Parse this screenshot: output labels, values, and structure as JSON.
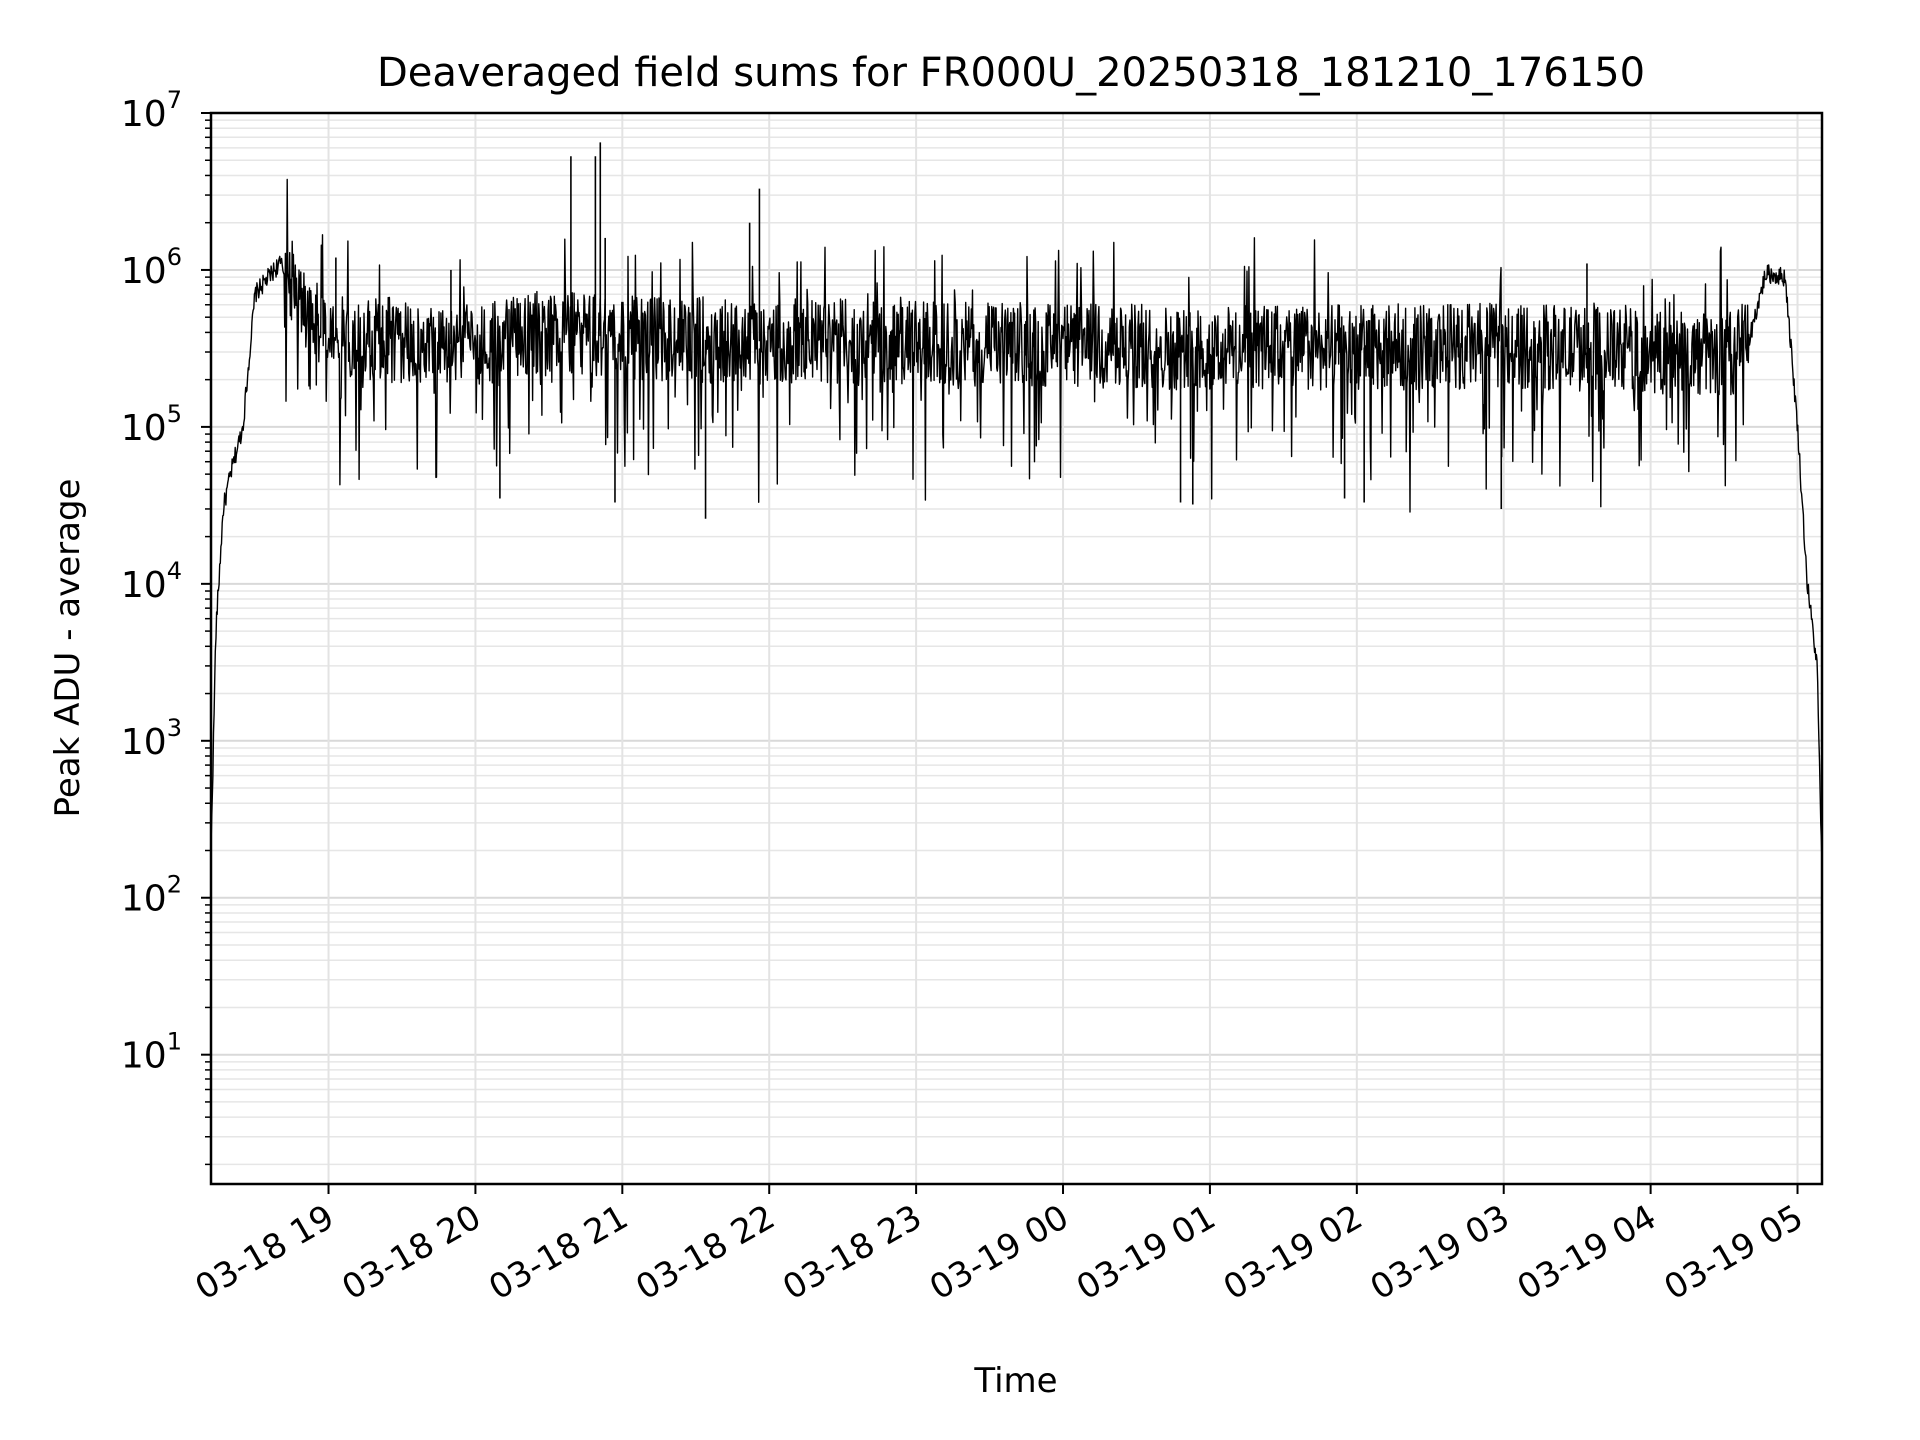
{
  "chart_data": {
    "type": "line",
    "title": "Deaveraged field sums for FR000U_20250318_181210_176150",
    "xlabel": "Time",
    "ylabel": "Peak ADU - average",
    "y_scale": "log",
    "ylim": [
      1.5,
      10000000
    ],
    "xlim": [
      "03-18 18:12",
      "03-19 05:10"
    ],
    "grid": true,
    "x_ticks": [
      "03-18 19",
      "03-18 20",
      "03-18 21",
      "03-18 22",
      "03-18 23",
      "03-19 00",
      "03-19 01",
      "03-19 02",
      "03-19 03",
      "03-19 04",
      "03-19 05"
    ],
    "y_ticks": [
      {
        "base": "10",
        "exp": "1",
        "value": 10
      },
      {
        "base": "10",
        "exp": "2",
        "value": 100
      },
      {
        "base": "10",
        "exp": "3",
        "value": 1000
      },
      {
        "base": "10",
        "exp": "4",
        "value": 10000
      },
      {
        "base": "10",
        "exp": "5",
        "value": 100000
      },
      {
        "base": "10",
        "exp": "6",
        "value": 1000000
      },
      {
        "base": "10",
        "exp": "7",
        "value": 10000000
      }
    ],
    "series": [
      {
        "color": "#000000",
        "x": [
          "03-18 18:12",
          "03-18 18:14",
          "03-18 18:17",
          "03-18 18:20",
          "03-18 18:25",
          "03-18 18:30",
          "03-18 18:40",
          "03-18 18:48",
          "03-18 18:55",
          "03-18 19:00",
          "03-18 19:30",
          "03-18 20:00",
          "03-18 20:30",
          "03-18 21:00",
          "03-18 21:30",
          "03-18 22:00",
          "03-18 23:00",
          "03-19 00:00",
          "03-19 01:00",
          "03-19 02:00",
          "03-19 03:00",
          "03-19 04:00",
          "03-19 04:30",
          "03-19 04:40",
          "03-19 04:47",
          "03-19 04:55",
          "03-19 05:00",
          "03-19 05:04",
          "03-19 05:08",
          "03-19 05:10"
        ],
        "y": [
          200,
          5000,
          30000,
          50000,
          100000,
          700000,
          1100000,
          700000,
          450000,
          380000,
          350000,
          330000,
          400000,
          370000,
          360000,
          350000,
          340000,
          330000,
          320000,
          320000,
          330000,
          300000,
          280000,
          350000,
          950000,
          900000,
          100000,
          10000,
          3000,
          150
        ]
      }
    ],
    "spikes": [
      {
        "x": "03-18 20:39",
        "y": 5300000
      },
      {
        "x": "03-18 20:49",
        "y": 5300000
      },
      {
        "x": "03-18 20:51",
        "y": 6500000
      },
      {
        "x": "03-18 20:53",
        "y": 1600000
      },
      {
        "x": "03-18 21:52",
        "y": 2000000
      },
      {
        "x": "03-18 21:56",
        "y": 3300000
      },
      {
        "x": "03-18 19:03",
        "y": 1200000
      },
      {
        "x": "03-18 19:50",
        "y": 1000000
      },
      {
        "x": "03-19 03:34",
        "y": 1100000
      },
      {
        "x": "03-18 21:34",
        "y": 26000
      },
      {
        "x": "03-18 20:10",
        "y": 35000
      },
      {
        "x": "03-19 01:55",
        "y": 35000
      },
      {
        "x": "03-19 02:03",
        "y": 33000
      },
      {
        "x": "03-19 02:59",
        "y": 30000
      },
      {
        "x": "03-19 00:48",
        "y": 33000
      },
      {
        "x": "03-19 00:53",
        "y": 32000
      },
      {
        "x": "03-18 20:57",
        "y": 33000
      }
    ]
  }
}
